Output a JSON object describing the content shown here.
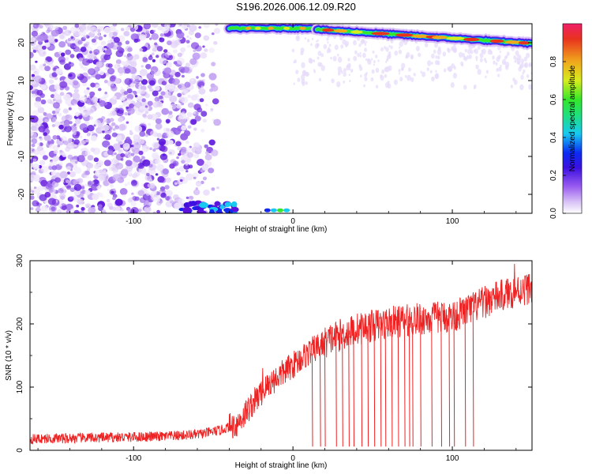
{
  "title": "S196.2026.006.12.09.R20",
  "chart_data": [
    {
      "type": "heatmap",
      "title": "S196.2026.006.12.09.R20",
      "xlabel": "Height of straight line (km)",
      "ylabel": "Frequency (Hz)",
      "xlim": [
        -165,
        150
      ],
      "ylim": [
        -25,
        25
      ],
      "x_ticks": [
        -100,
        0,
        100
      ],
      "y_ticks": [
        -20,
        -10,
        0,
        10,
        20
      ],
      "colorbar": {
        "label": "Normalized spectral amplitude",
        "range": [
          0,
          1
        ],
        "ticks": [
          "0.0",
          "0.2",
          "0.4",
          "0.6",
          "0.8"
        ],
        "colors": [
          "#ffffff",
          "#b48cf0",
          "#5a12dc",
          "#0b2cf5",
          "#18c9f0",
          "#20e07a",
          "#36e62a",
          "#d6ec1e",
          "#f0a81c",
          "#e8321e"
        ]
      },
      "features": {
        "noise_region_km": [
          -165,
          -45
        ],
        "tone_segment_1": {
          "x_km": [
            -40,
            15
          ],
          "frequency_hz": 23.8
        },
        "tone_segment_2": {
          "x_km": [
            15,
            150
          ],
          "frequency_hz_start": 23.5,
          "frequency_hz_end": 19.8
        },
        "aliased_band_bottom": {
          "x_km": [
            -70,
            -35
          ],
          "frequency_hz": -24
        }
      }
    },
    {
      "type": "line",
      "xlabel": "Height of straight line (km)",
      "ylabel": "SNR (10 * v/v)",
      "xlim": [
        -165,
        150
      ],
      "ylim": [
        0,
        300
      ],
      "x_ticks": [
        -100,
        0,
        100
      ],
      "y_ticks": [
        0,
        100,
        200,
        300
      ],
      "color": "#ee2222",
      "trend": [
        {
          "x": -165,
          "y": 18
        },
        {
          "x": -120,
          "y": 20
        },
        {
          "x": -80,
          "y": 22
        },
        {
          "x": -60,
          "y": 25
        },
        {
          "x": -45,
          "y": 32
        },
        {
          "x": -35,
          "y": 42
        },
        {
          "x": -25,
          "y": 75
        },
        {
          "x": -15,
          "y": 105
        },
        {
          "x": 0,
          "y": 135
        },
        {
          "x": 10,
          "y": 155
        },
        {
          "x": 25,
          "y": 178
        },
        {
          "x": 40,
          "y": 192
        },
        {
          "x": 60,
          "y": 202
        },
        {
          "x": 80,
          "y": 208
        },
        {
          "x": 100,
          "y": 212
        },
        {
          "x": 110,
          "y": 222
        },
        {
          "x": 125,
          "y": 240
        },
        {
          "x": 140,
          "y": 252
        },
        {
          "x": 150,
          "y": 258
        }
      ],
      "dropouts_km": [
        12,
        17,
        20,
        27,
        31,
        35,
        38,
        43,
        47,
        51,
        55,
        58,
        62,
        66,
        70,
        73,
        75,
        80,
        87,
        93,
        98,
        101,
        108,
        113
      ],
      "spikes": [
        {
          "x": -19,
          "y": 130
        },
        {
          "x": 139,
          "y": 295
        }
      ]
    }
  ]
}
